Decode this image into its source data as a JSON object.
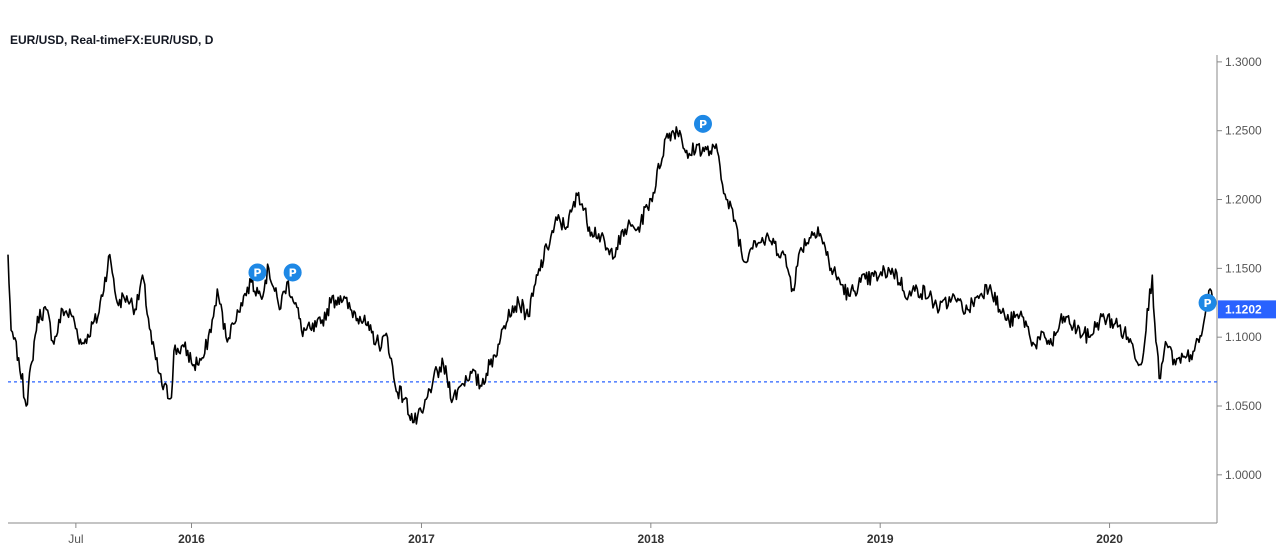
{
  "header": {
    "title": "EUR/USD, Real-timeFX:EUR/USD, D"
  },
  "colors": {
    "line": "#000000",
    "reference": "#2962ff",
    "marker": "#1e88e5",
    "price_label": "#2962ff",
    "axis": "#888888"
  },
  "chart_data": {
    "type": "line",
    "title": "EUR/USD, Real-timeFX:EUR/USD, D",
    "series": [
      {
        "x": [
          "2015-03-15",
          "2015-03-20",
          "2015-04-01",
          "2015-04-13",
          "2015-04-22",
          "2015-05-01",
          "2015-05-15",
          "2015-05-27",
          "2015-06-10",
          "2015-06-25",
          "2015-07-10",
          "2015-07-20",
          "2015-08-05",
          "2015-08-24",
          "2015-09-05",
          "2015-09-20",
          "2015-10-05",
          "2015-10-15",
          "2015-10-30",
          "2015-11-15",
          "2015-11-30",
          "2015-12-04",
          "2015-12-20",
          "2016-01-05",
          "2016-01-20",
          "2016-02-05",
          "2016-02-11",
          "2016-02-25",
          "2016-03-10",
          "2016-03-20",
          "2016-04-05",
          "2016-04-20",
          "2016-05-03",
          "2016-05-20",
          "2016-06-01",
          "2016-06-15",
          "2016-06-24",
          "2016-07-10",
          "2016-07-25",
          "2016-08-10",
          "2016-08-25",
          "2016-09-10",
          "2016-09-25",
          "2016-10-10",
          "2016-10-25",
          "2016-11-08",
          "2016-11-20",
          "2016-12-05",
          "2016-12-20",
          "2017-01-03",
          "2017-01-20",
          "2017-02-05",
          "2017-02-20",
          "2017-03-05",
          "2017-03-20",
          "2017-04-05",
          "2017-04-20",
          "2017-05-05",
          "2017-05-20",
          "2017-06-05",
          "2017-06-20",
          "2017-07-05",
          "2017-07-20",
          "2017-08-05",
          "2017-08-20",
          "2017-09-08",
          "2017-09-25",
          "2017-10-10",
          "2017-10-27",
          "2017-11-07",
          "2017-11-25",
          "2017-12-12",
          "2018-01-05",
          "2018-01-25",
          "2018-02-05",
          "2018-02-16",
          "2018-03-01",
          "2018-03-15",
          "2018-03-27",
          "2018-04-17",
          "2018-05-01",
          "2018-05-15",
          "2018-05-29",
          "2018-06-14",
          "2018-07-09",
          "2018-08-01",
          "2018-08-15",
          "2018-08-28",
          "2018-09-24",
          "2018-10-15",
          "2018-11-12",
          "2018-12-01",
          "2018-12-31",
          "2019-01-20",
          "2019-02-15",
          "2019-03-01",
          "2019-03-20",
          "2019-04-05",
          "2019-04-25",
          "2019-05-20",
          "2019-06-05",
          "2019-06-25",
          "2019-07-10",
          "2019-07-25",
          "2019-08-15",
          "2019-09-03",
          "2019-09-20",
          "2019-10-01",
          "2019-10-20",
          "2019-11-10",
          "2019-11-29",
          "2019-12-20",
          "2020-01-10",
          "2020-01-30",
          "2020-02-20",
          "2020-03-09",
          "2020-03-13",
          "2020-03-20",
          "2020-04-01",
          "2020-04-15",
          "2020-05-01",
          "2020-05-15",
          "2020-05-28",
          "2020-06-09",
          "2020-06-15"
        ],
        "y": [
          1.16,
          1.105,
          1.085,
          1.05,
          1.082,
          1.115,
          1.12,
          1.095,
          1.12,
          1.115,
          1.095,
          1.102,
          1.115,
          1.16,
          1.125,
          1.13,
          1.12,
          1.145,
          1.095,
          1.065,
          1.056,
          1.09,
          1.093,
          1.08,
          1.085,
          1.115,
          1.135,
          1.1,
          1.11,
          1.125,
          1.14,
          1.13,
          1.15,
          1.12,
          1.14,
          1.125,
          1.105,
          1.105,
          1.11,
          1.125,
          1.13,
          1.12,
          1.115,
          1.105,
          1.095,
          1.1,
          1.065,
          1.055,
          1.038,
          1.045,
          1.07,
          1.08,
          1.055,
          1.065,
          1.075,
          1.065,
          1.08,
          1.095,
          1.12,
          1.125,
          1.115,
          1.145,
          1.165,
          1.185,
          1.18,
          1.205,
          1.18,
          1.175,
          1.16,
          1.165,
          1.18,
          1.18,
          1.205,
          1.245,
          1.25,
          1.25,
          1.23,
          1.24,
          1.235,
          1.235,
          1.2,
          1.185,
          1.155,
          1.17,
          1.17,
          1.16,
          1.135,
          1.165,
          1.18,
          1.15,
          1.13,
          1.14,
          1.145,
          1.15,
          1.13,
          1.135,
          1.13,
          1.12,
          1.128,
          1.12,
          1.13,
          1.138,
          1.12,
          1.112,
          1.115,
          1.095,
          1.1,
          1.095,
          1.115,
          1.105,
          1.1,
          1.115,
          1.11,
          1.1,
          1.08,
          1.145,
          1.11,
          1.07,
          1.095,
          1.08,
          1.085,
          1.09,
          1.105,
          1.135,
          1.125
        ]
      }
    ],
    "markers": [
      {
        "label": "P",
        "x": "2016-04-15",
        "y": 1.147
      },
      {
        "label": "P",
        "x": "2016-06-10",
        "y": 1.147
      },
      {
        "label": "P",
        "x": "2018-03-25",
        "y": 1.255
      },
      {
        "label": "P",
        "x": "2020-06-05",
        "y": 1.125
      }
    ],
    "reference_line": {
      "y": 1.0675,
      "style": "dashed"
    },
    "last_value": 1.1202,
    "last_value_label": "1.1202",
    "yaxis": {
      "ticks": [
        1.3,
        1.25,
        1.2,
        1.15,
        1.1,
        1.05,
        1.0
      ],
      "tick_labels": [
        "1.3000",
        "1.2500",
        "1.2000",
        "1.1500",
        "1.1000",
        "1.0500",
        "1.0000"
      ],
      "position": "right",
      "range": [
        0.965,
        1.305
      ]
    },
    "xaxis": {
      "ticks": [
        {
          "label": "Jul",
          "x": "2015-07-01",
          "bold": false
        },
        {
          "label": "2016",
          "x": "2016-01-01",
          "bold": true
        },
        {
          "label": "2017",
          "x": "2017-01-01",
          "bold": true
        },
        {
          "label": "2018",
          "x": "2018-01-01",
          "bold": true
        },
        {
          "label": "2019",
          "x": "2019-01-01",
          "bold": true
        },
        {
          "label": "2020",
          "x": "2020-01-01",
          "bold": true
        }
      ],
      "range": [
        "2015-03-15",
        "2020-06-20"
      ]
    },
    "grid": false,
    "legend": "none"
  }
}
